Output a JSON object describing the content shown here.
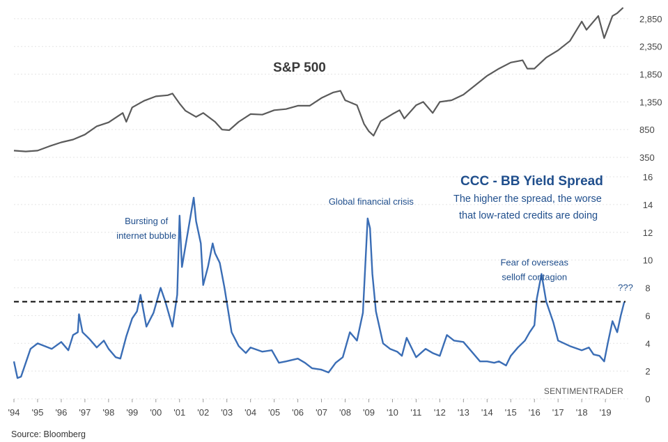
{
  "chart_data": [
    {
      "type": "line",
      "title": "S&P 500",
      "series": [
        {
          "name": "S&P 500",
          "color": "#5a5a5a",
          "x": [
            1994.0,
            1994.5,
            1995.0,
            1995.5,
            1996.0,
            1996.5,
            1997.0,
            1997.5,
            1998.0,
            1998.6,
            1998.75,
            1999.0,
            1999.5,
            2000.0,
            2000.5,
            2000.7,
            2001.0,
            2001.25,
            2001.7,
            2002.0,
            2002.5,
            2002.8,
            2003.1,
            2003.5,
            2004.0,
            2004.5,
            2005.0,
            2005.5,
            2006.0,
            2006.5,
            2007.0,
            2007.5,
            2007.8,
            2008.0,
            2008.5,
            2008.8,
            2009.0,
            2009.2,
            2009.5,
            2010.0,
            2010.3,
            2010.5,
            2011.0,
            2011.3,
            2011.7,
            2012.0,
            2012.5,
            2013.0,
            2013.5,
            2014.0,
            2014.5,
            2015.0,
            2015.5,
            2015.7,
            2016.0,
            2016.5,
            2017.0,
            2017.5,
            2018.0,
            2018.2,
            2018.7,
            2018.95,
            2019.3,
            2019.5,
            2019.75
          ],
          "values": [
            470,
            455,
            470,
            550,
            620,
            670,
            760,
            910,
            980,
            1150,
            990,
            1250,
            1370,
            1450,
            1470,
            1500,
            1320,
            1190,
            1080,
            1150,
            990,
            850,
            840,
            990,
            1130,
            1120,
            1200,
            1220,
            1280,
            1280,
            1420,
            1520,
            1550,
            1380,
            1290,
            950,
            820,
            740,
            1000,
            1130,
            1200,
            1050,
            1290,
            1350,
            1150,
            1350,
            1380,
            1480,
            1650,
            1820,
            1950,
            2060,
            2100,
            1950,
            1950,
            2150,
            2280,
            2450,
            2800,
            2650,
            2900,
            2500,
            2900,
            2950,
            3050
          ]
        }
      ],
      "ylim": [
        350,
        3100
      ],
      "yticks": [
        350,
        850,
        1350,
        1850,
        2350,
        2850
      ],
      "ytick_labels": [
        "350",
        "850",
        "1,350",
        "1,850",
        "2,350",
        "2,850"
      ],
      "xlabel": "",
      "ylabel": ""
    },
    {
      "type": "line",
      "title": "CCC - BB Yield Spread",
      "subtitle": [
        "The higher the spread, the worse",
        "that low-rated credits are doing"
      ],
      "series": [
        {
          "name": "CCC - BB Yield Spread",
          "color": "#3a6db5",
          "x": [
            1994.0,
            1994.15,
            1994.3,
            1994.5,
            1994.7,
            1995.0,
            1995.3,
            1995.6,
            1996.0,
            1996.3,
            1996.5,
            1996.7,
            1996.75,
            1996.9,
            1997.2,
            1997.5,
            1997.8,
            1998.0,
            1998.3,
            1998.5,
            1998.75,
            1999.0,
            1999.2,
            1999.35,
            1999.6,
            1999.9,
            2000.2,
            2000.4,
            2000.7,
            2000.9,
            2001.0,
            2001.1,
            2001.4,
            2001.6,
            2001.7,
            2001.9,
            2002.0,
            2002.2,
            2002.4,
            2002.5,
            2002.7,
            2002.9,
            2003.2,
            2003.5,
            2003.8,
            2004.0,
            2004.5,
            2004.9,
            2005.2,
            2005.5,
            2006.0,
            2006.3,
            2006.6,
            2007.0,
            2007.3,
            2007.6,
            2007.9,
            2008.2,
            2008.5,
            2008.75,
            2008.95,
            2009.05,
            2009.15,
            2009.3,
            2009.6,
            2009.9,
            2010.2,
            2010.4,
            2010.6,
            2011.0,
            2011.4,
            2011.7,
            2012.0,
            2012.3,
            2012.6,
            2013.0,
            2013.4,
            2013.7,
            2014.0,
            2014.3,
            2014.5,
            2014.8,
            2015.0,
            2015.3,
            2015.6,
            2015.8,
            2016.0,
            2016.1,
            2016.3,
            2016.5,
            2016.8,
            2017.0,
            2017.5,
            2018.0,
            2018.3,
            2018.5,
            2018.75,
            2018.95,
            2019.1,
            2019.3,
            2019.5,
            2019.65,
            2019.8
          ],
          "values": [
            2.7,
            1.5,
            1.6,
            2.6,
            3.6,
            4.0,
            3.8,
            3.6,
            4.1,
            3.5,
            4.6,
            4.8,
            6.1,
            4.8,
            4.3,
            3.7,
            4.2,
            3.6,
            3.0,
            2.9,
            4.5,
            5.8,
            6.3,
            7.5,
            5.2,
            6.2,
            8.0,
            7.0,
            5.2,
            7.5,
            13.2,
            9.5,
            12.5,
            14.5,
            12.8,
            11.2,
            8.2,
            9.5,
            11.2,
            10.5,
            9.8,
            8.0,
            4.8,
            3.8,
            3.3,
            3.7,
            3.4,
            3.5,
            2.6,
            2.7,
            2.9,
            2.6,
            2.2,
            2.1,
            1.9,
            2.6,
            3.0,
            4.8,
            4.2,
            6.2,
            13.0,
            12.3,
            9.0,
            6.3,
            4.0,
            3.6,
            3.4,
            3.1,
            4.4,
            3.0,
            3.6,
            3.3,
            3.1,
            4.6,
            4.2,
            4.1,
            3.3,
            2.7,
            2.7,
            2.6,
            2.7,
            2.4,
            3.1,
            3.7,
            4.2,
            4.8,
            5.3,
            7.2,
            9.0,
            7.0,
            5.5,
            4.2,
            3.8,
            3.5,
            3.7,
            3.2,
            3.1,
            2.7,
            4.0,
            5.6,
            4.8,
            6.0,
            7.0
          ],
          "annotations": [
            {
              "x": 1999.6,
              "y": 12.6,
              "text": [
                "Bursting of",
                "internet bubble"
              ]
            },
            {
              "x": 2009.1,
              "y": 14.0,
              "text": [
                "Global financial crisis"
              ]
            },
            {
              "x": 2016.0,
              "y": 9.6,
              "text": [
                "Fear of overseas",
                "selloff contagion"
              ]
            },
            {
              "x": 2019.85,
              "y": 7.8,
              "text": [
                "???"
              ]
            }
          ]
        }
      ],
      "reference_line": {
        "y": 7.0,
        "style": "dashed",
        "color": "#111111"
      },
      "ylim": [
        0,
        16
      ],
      "yticks": [
        0,
        2,
        4,
        6,
        8,
        10,
        12,
        14,
        16
      ],
      "ytick_labels": [
        "0",
        "2",
        "4",
        "6",
        "8",
        "10",
        "12",
        "14",
        "16"
      ],
      "x_range": [
        1994,
        2019.85
      ],
      "xticks": [
        1994,
        1995,
        1996,
        1997,
        1998,
        1999,
        2000,
        2001,
        2002,
        2003,
        2004,
        2005,
        2006,
        2007,
        2008,
        2009,
        2010,
        2011,
        2012,
        2013,
        2014,
        2015,
        2016,
        2017,
        2018,
        2019
      ],
      "xtick_labels": [
        "'94",
        "'95",
        "'96",
        "'97",
        "'98",
        "'99",
        "'00",
        "'01",
        "'02",
        "'03",
        "'04",
        "'05",
        "'06",
        "'07",
        "'08",
        "'09",
        "'10",
        "'11",
        "'12",
        "'13",
        "'14",
        "'15",
        "'16",
        "'17",
        "'18",
        "'19"
      ],
      "xlabel": "",
      "ylabel": ""
    }
  ],
  "footer": {
    "credit": "SENTIMENTRADER",
    "source": "Source: Bloomberg"
  }
}
